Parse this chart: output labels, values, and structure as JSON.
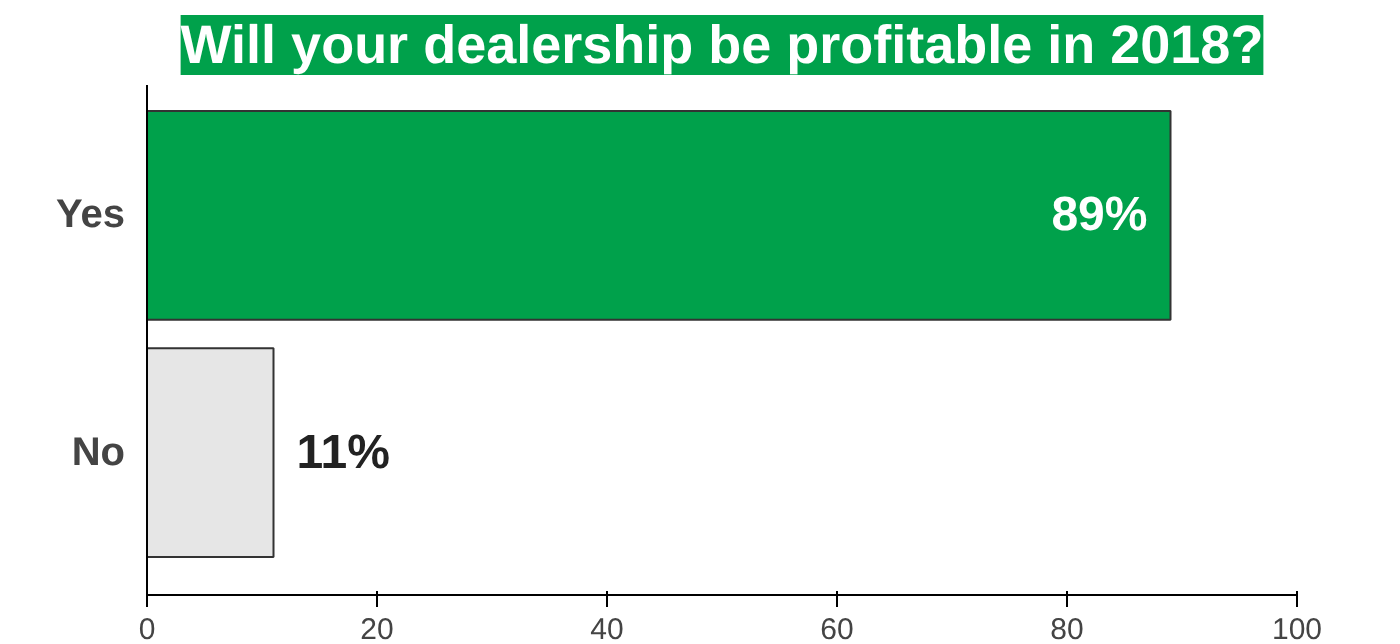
{
  "chart_data": {
    "type": "bar",
    "orientation": "horizontal",
    "title": "Will your dealership be profitable in 2018?",
    "categories": [
      "Yes",
      "No"
    ],
    "values": [
      89,
      11
    ],
    "colors": [
      "#00a14b",
      "#e6e6e6"
    ],
    "xlim": [
      0,
      100
    ],
    "xticks": [
      0,
      20,
      40,
      60,
      80,
      100
    ],
    "value_labels": [
      "89%",
      "11%"
    ],
    "grid": false
  }
}
